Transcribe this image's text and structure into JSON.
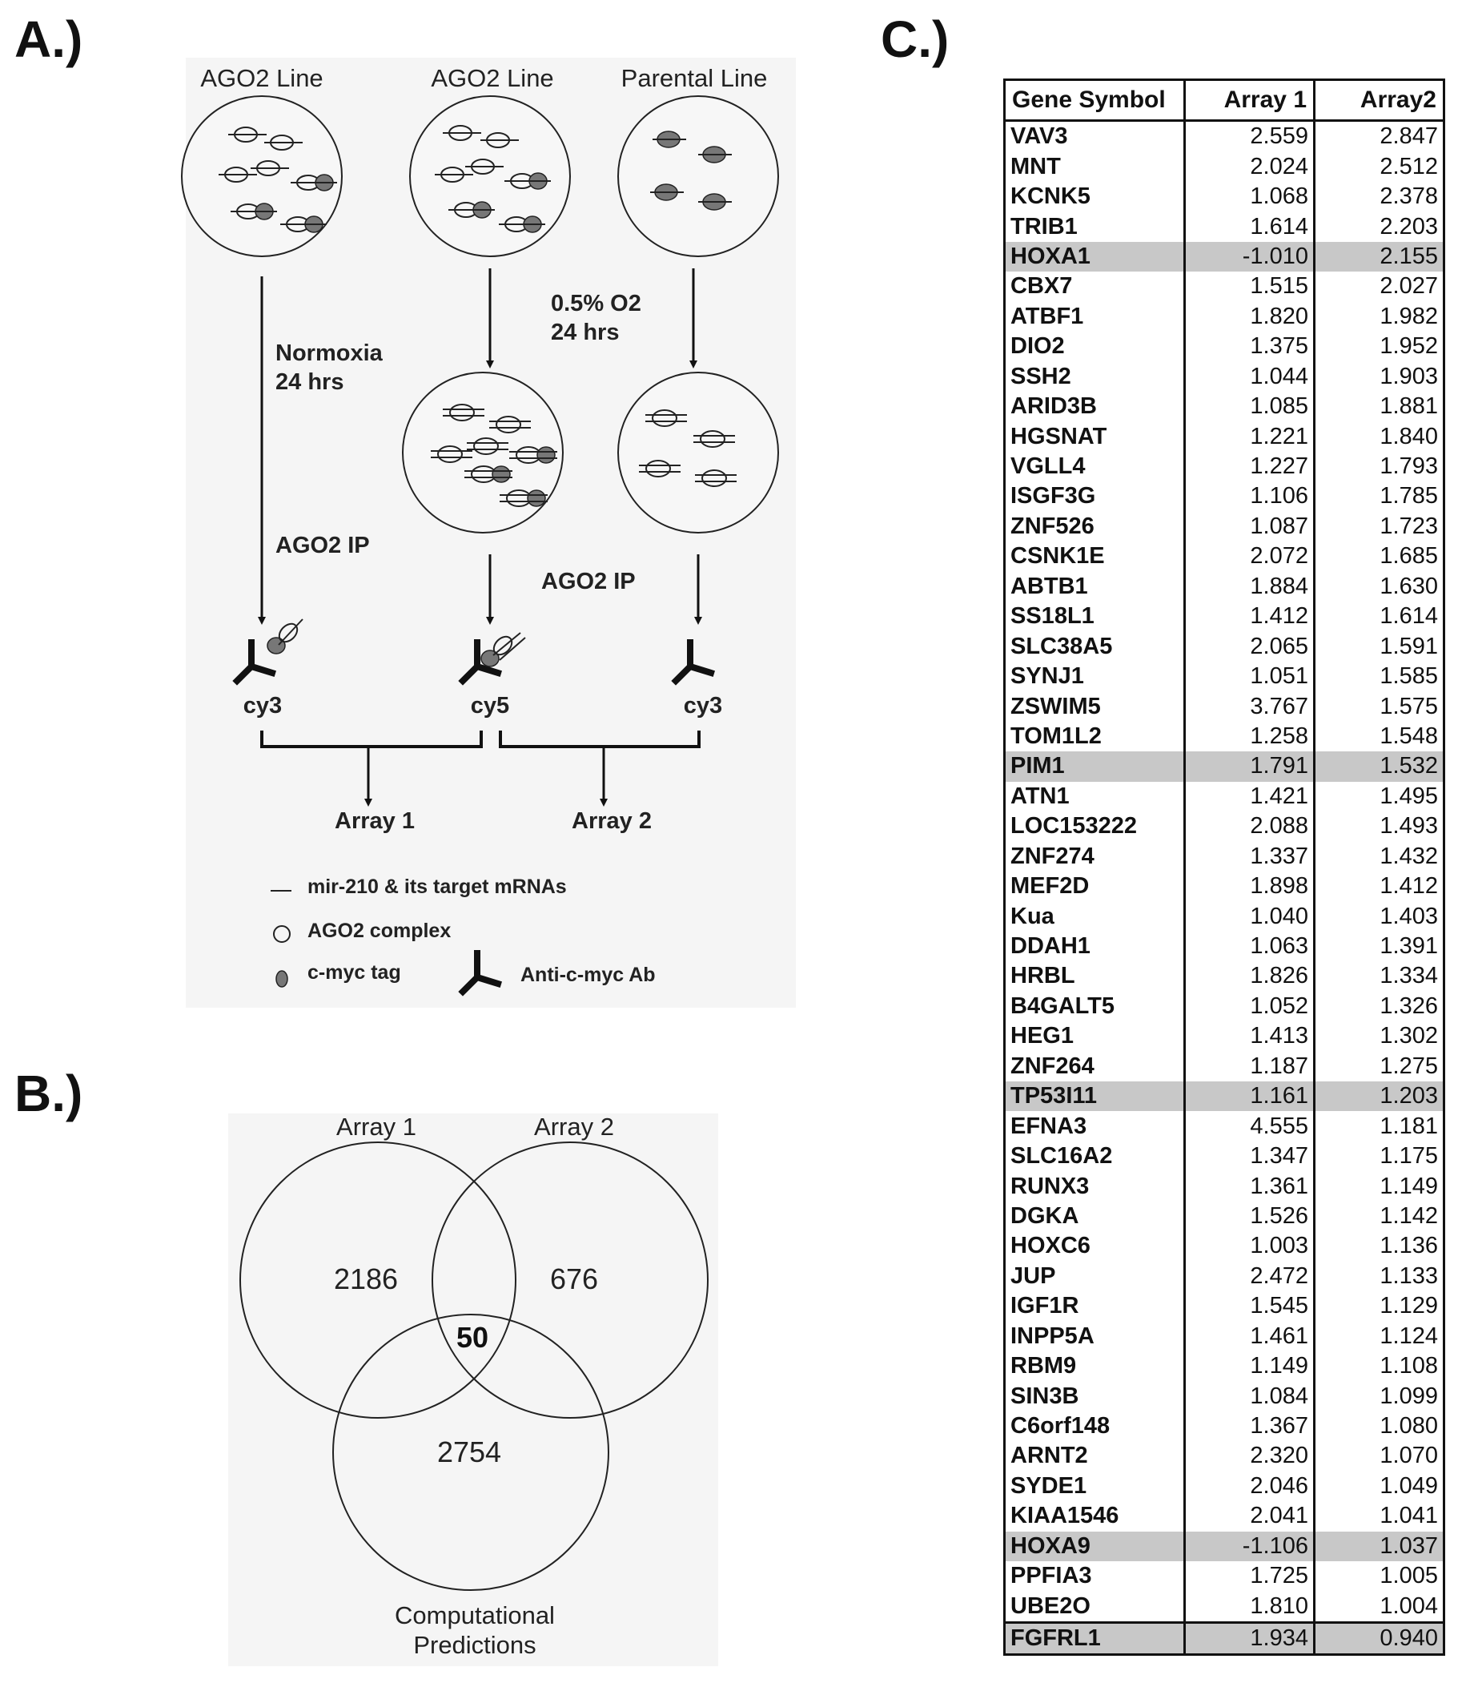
{
  "panel_labels": {
    "a": "A.)",
    "b": "B.)",
    "c": "C.)"
  },
  "panel_a": {
    "line_labels": [
      "AGO2 Line",
      "AGO2 Line",
      "Parental Line"
    ],
    "normoxia": [
      "Normoxia",
      "24 hrs"
    ],
    "hypoxia": [
      "0.5% O2",
      "24 hrs"
    ],
    "ip_left": "AGO2 IP",
    "ip_right": "AGO2 IP",
    "dyes": [
      "cy3",
      "cy5",
      "cy3"
    ],
    "arrays": [
      "Array 1",
      "Array 2"
    ],
    "legend": {
      "mir": "mir-210 & its target mRNAs",
      "ago2": "AGO2 complex",
      "tag": "c-myc tag",
      "ab": "Anti-c-myc Ab"
    }
  },
  "venn": {
    "set_labels": [
      "Array 1",
      "Array 2"
    ],
    "bottom_label": [
      "Computational",
      "Predictions"
    ],
    "counts": {
      "array1_only": "2186",
      "array2_only": "676",
      "predictions_only": "2754",
      "all_three": "50"
    }
  },
  "table": {
    "headers": [
      "Gene Symbol",
      "Array 1",
      "Array2"
    ],
    "highlight_color": "#c8c8c8",
    "rows": [
      {
        "gene": "VAV3",
        "a1": "2.559",
        "a2": "2.847"
      },
      {
        "gene": "MNT",
        "a1": "2.024",
        "a2": "2.512"
      },
      {
        "gene": "KCNK5",
        "a1": "1.068",
        "a2": "2.378"
      },
      {
        "gene": "TRIB1",
        "a1": "1.614",
        "a2": "2.203"
      },
      {
        "gene": "HOXA1",
        "a1": "-1.010",
        "a2": "2.155",
        "hl": true
      },
      {
        "gene": "CBX7",
        "a1": "1.515",
        "a2": "2.027"
      },
      {
        "gene": "ATBF1",
        "a1": "1.820",
        "a2": "1.982"
      },
      {
        "gene": "DIO2",
        "a1": "1.375",
        "a2": "1.952"
      },
      {
        "gene": "SSH2",
        "a1": "1.044",
        "a2": "1.903"
      },
      {
        "gene": "ARID3B",
        "a1": "1.085",
        "a2": "1.881"
      },
      {
        "gene": "HGSNAT",
        "a1": "1.221",
        "a2": "1.840"
      },
      {
        "gene": "VGLL4",
        "a1": "1.227",
        "a2": "1.793"
      },
      {
        "gene": "ISGF3G",
        "a1": "1.106",
        "a2": "1.785"
      },
      {
        "gene": "ZNF526",
        "a1": "1.087",
        "a2": "1.723"
      },
      {
        "gene": "CSNK1E",
        "a1": "2.072",
        "a2": "1.685"
      },
      {
        "gene": "ABTB1",
        "a1": "1.884",
        "a2": "1.630"
      },
      {
        "gene": "SS18L1",
        "a1": "1.412",
        "a2": "1.614"
      },
      {
        "gene": "SLC38A5",
        "a1": "2.065",
        "a2": "1.591"
      },
      {
        "gene": "SYNJ1",
        "a1": "1.051",
        "a2": "1.585"
      },
      {
        "gene": "ZSWIM5",
        "a1": "3.767",
        "a2": "1.575"
      },
      {
        "gene": "TOM1L2",
        "a1": "1.258",
        "a2": "1.548"
      },
      {
        "gene": "PIM1",
        "a1": "1.791",
        "a2": "1.532",
        "hl": true
      },
      {
        "gene": "ATN1",
        "a1": "1.421",
        "a2": "1.495"
      },
      {
        "gene": "LOC153222",
        "a1": "2.088",
        "a2": "1.493"
      },
      {
        "gene": "ZNF274",
        "a1": "1.337",
        "a2": "1.432"
      },
      {
        "gene": "MEF2D",
        "a1": "1.898",
        "a2": "1.412"
      },
      {
        "gene": "Kua",
        "a1": "1.040",
        "a2": "1.403"
      },
      {
        "gene": "DDAH1",
        "a1": "1.063",
        "a2": "1.391"
      },
      {
        "gene": "HRBL",
        "a1": "1.826",
        "a2": "1.334"
      },
      {
        "gene": "B4GALT5",
        "a1": "1.052",
        "a2": "1.326"
      },
      {
        "gene": "HEG1",
        "a1": "1.413",
        "a2": "1.302"
      },
      {
        "gene": "ZNF264",
        "a1": "1.187",
        "a2": "1.275"
      },
      {
        "gene": "TP53I11",
        "a1": "1.161",
        "a2": "1.203",
        "hl": true
      },
      {
        "gene": "EFNA3",
        "a1": "4.555",
        "a2": "1.181"
      },
      {
        "gene": "SLC16A2",
        "a1": "1.347",
        "a2": "1.175"
      },
      {
        "gene": "RUNX3",
        "a1": "1.361",
        "a2": "1.149"
      },
      {
        "gene": "DGKA",
        "a1": "1.526",
        "a2": "1.142"
      },
      {
        "gene": "HOXC6",
        "a1": "1.003",
        "a2": "1.136"
      },
      {
        "gene": "JUP",
        "a1": "2.472",
        "a2": "1.133"
      },
      {
        "gene": "IGF1R",
        "a1": "1.545",
        "a2": "1.129"
      },
      {
        "gene": "INPP5A",
        "a1": "1.461",
        "a2": "1.124"
      },
      {
        "gene": "RBM9",
        "a1": "1.149",
        "a2": "1.108"
      },
      {
        "gene": "SIN3B",
        "a1": "1.084",
        "a2": "1.099"
      },
      {
        "gene": "C6orf148",
        "a1": "1.367",
        "a2": "1.080"
      },
      {
        "gene": "ARNT2",
        "a1": "2.320",
        "a2": "1.070"
      },
      {
        "gene": "SYDE1",
        "a1": "2.046",
        "a2": "1.049"
      },
      {
        "gene": "KIAA1546",
        "a1": "2.041",
        "a2": "1.041"
      },
      {
        "gene": "HOXA9",
        "a1": "-1.106",
        "a2": "1.037",
        "hl": true
      },
      {
        "gene": "PPFIA3",
        "a1": "1.725",
        "a2": "1.005"
      },
      {
        "gene": "UBE2O",
        "a1": "1.810",
        "a2": "1.004"
      },
      {
        "gene": "FGFRL1",
        "a1": "1.934",
        "a2": "0.940",
        "hl": true,
        "boxed": true
      }
    ]
  }
}
